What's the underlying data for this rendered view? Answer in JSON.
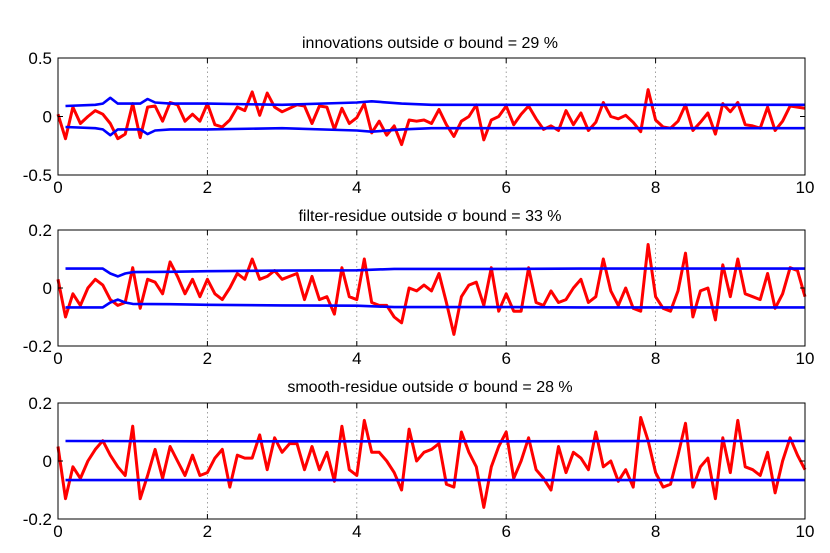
{
  "chart_data": [
    {
      "type": "line",
      "title_prefix": "innovations outside ",
      "title_symbol": "σ",
      "title_suffix": " bound = 29 %",
      "xlim": [
        0,
        10
      ],
      "ylim": [
        -0.5,
        0.5
      ],
      "xticks": [
        0,
        2,
        4,
        6,
        8,
        10
      ],
      "yticks": [
        -0.5,
        0,
        0.5
      ],
      "ytick_labels": [
        "-0.5",
        "0",
        "0.5"
      ],
      "grid": "x-dotted",
      "series": [
        {
          "color": "#ff0000",
          "role": "signal",
          "x": [
            0,
            0.1,
            0.2,
            0.3,
            0.4,
            0.5,
            0.6,
            0.7,
            0.8,
            0.9,
            1.0,
            1.1,
            1.2,
            1.3,
            1.4,
            1.5,
            1.6,
            1.7,
            1.8,
            1.9,
            2.0,
            2.1,
            2.2,
            2.3,
            2.4,
            2.5,
            2.6,
            2.7,
            2.8,
            2.9,
            3.0,
            3.1,
            3.2,
            3.3,
            3.4,
            3.5,
            3.6,
            3.7,
            3.8,
            3.9,
            4.0,
            4.1,
            4.2,
            4.3,
            4.4,
            4.5,
            4.6,
            4.7,
            4.8,
            4.9,
            5.0,
            5.1,
            5.2,
            5.3,
            5.4,
            5.5,
            5.6,
            5.7,
            5.8,
            5.9,
            6.0,
            6.1,
            6.2,
            6.3,
            6.4,
            6.5,
            6.6,
            6.7,
            6.8,
            6.9,
            7.0,
            7.1,
            7.2,
            7.3,
            7.4,
            7.5,
            7.6,
            7.7,
            7.8,
            7.9,
            8.0,
            8.1,
            8.2,
            8.3,
            8.4,
            8.5,
            8.6,
            8.7,
            8.8,
            8.9,
            9.0,
            9.1,
            9.2,
            9.3,
            9.4,
            9.5,
            9.6,
            9.7,
            9.8,
            9.9,
            10.0
          ],
          "y": [
            0.02,
            -0.19,
            0.08,
            -0.06,
            0.0,
            0.05,
            0.02,
            -0.06,
            -0.19,
            -0.15,
            0.11,
            -0.18,
            0.08,
            0.09,
            -0.04,
            0.12,
            0.1,
            -0.04,
            0.02,
            -0.04,
            0.11,
            -0.07,
            -0.09,
            -0.03,
            0.08,
            0.05,
            0.21,
            0.01,
            0.2,
            0.08,
            0.04,
            0.07,
            0.1,
            0.09,
            -0.06,
            0.09,
            0.08,
            -0.11,
            0.07,
            -0.06,
            -0.01,
            0.11,
            -0.14,
            -0.04,
            -0.16,
            -0.08,
            -0.24,
            -0.03,
            -0.04,
            -0.03,
            -0.06,
            0.06,
            -0.07,
            -0.17,
            -0.04,
            0.0,
            0.1,
            -0.2,
            -0.03,
            0.0,
            0.09,
            -0.07,
            0.02,
            0.09,
            -0.02,
            -0.11,
            -0.08,
            -0.12,
            0.05,
            -0.07,
            0.03,
            -0.12,
            -0.05,
            0.12,
            0.0,
            -0.02,
            0.01,
            -0.05,
            -0.13,
            0.23,
            -0.03,
            -0.09,
            -0.1,
            -0.04,
            0.1,
            -0.12,
            -0.05,
            0.03,
            -0.15,
            0.11,
            0.04,
            0.12,
            -0.07,
            -0.08,
            -0.1,
            0.08,
            -0.12,
            -0.04,
            0.09,
            0.08,
            0.07
          ]
        },
        {
          "color": "#0000ff",
          "role": "upper-bound",
          "x": [
            0.1,
            0.5,
            0.6,
            0.7,
            0.8,
            0.9,
            1.1,
            1.2,
            1.3,
            1.5,
            2.0,
            3.0,
            4.0,
            4.2,
            4.6,
            5.0,
            6.0,
            7.0,
            8.0,
            9.0,
            10.0
          ],
          "y": [
            0.09,
            0.1,
            0.11,
            0.16,
            0.11,
            0.11,
            0.11,
            0.15,
            0.12,
            0.11,
            0.11,
            0.1,
            0.12,
            0.13,
            0.11,
            0.1,
            0.1,
            0.1,
            0.1,
            0.1,
            0.1
          ]
        },
        {
          "color": "#0000ff",
          "role": "lower-bound",
          "x": [
            0.1,
            0.5,
            0.6,
            0.7,
            0.8,
            0.9,
            1.1,
            1.2,
            1.3,
            1.5,
            2.0,
            3.0,
            4.0,
            4.2,
            4.6,
            5.0,
            6.0,
            7.0,
            8.0,
            9.0,
            10.0
          ],
          "y": [
            -0.09,
            -0.1,
            -0.11,
            -0.16,
            -0.11,
            -0.11,
            -0.11,
            -0.15,
            -0.12,
            -0.11,
            -0.11,
            -0.1,
            -0.12,
            -0.13,
            -0.11,
            -0.1,
            -0.1,
            -0.1,
            -0.1,
            -0.1,
            -0.1
          ]
        }
      ]
    },
    {
      "type": "line",
      "title_prefix": "filter-residue outside ",
      "title_symbol": "σ",
      "title_suffix": " bound = 33 %",
      "xlim": [
        0,
        10
      ],
      "ylim": [
        -0.2,
        0.2
      ],
      "xticks": [
        0,
        2,
        4,
        6,
        8,
        10
      ],
      "yticks": [
        -0.2,
        0,
        0.2
      ],
      "ytick_labels": [
        "-0.2",
        "0",
        "0.2"
      ],
      "grid": "x-dotted",
      "series": [
        {
          "color": "#ff0000",
          "role": "signal",
          "x": [
            0,
            0.1,
            0.2,
            0.3,
            0.4,
            0.5,
            0.6,
            0.7,
            0.8,
            0.9,
            1.0,
            1.1,
            1.2,
            1.3,
            1.4,
            1.5,
            1.6,
            1.7,
            1.8,
            1.9,
            2.0,
            2.1,
            2.2,
            2.3,
            2.4,
            2.5,
            2.6,
            2.7,
            2.8,
            2.9,
            3.0,
            3.1,
            3.2,
            3.3,
            3.4,
            3.5,
            3.6,
            3.7,
            3.8,
            3.9,
            4.0,
            4.1,
            4.2,
            4.3,
            4.4,
            4.5,
            4.6,
            4.7,
            4.8,
            4.9,
            5.0,
            5.1,
            5.2,
            5.3,
            5.4,
            5.5,
            5.6,
            5.7,
            5.8,
            5.9,
            6.0,
            6.1,
            6.2,
            6.3,
            6.4,
            6.5,
            6.6,
            6.7,
            6.8,
            6.9,
            7.0,
            7.1,
            7.2,
            7.3,
            7.4,
            7.5,
            7.6,
            7.7,
            7.8,
            7.9,
            8.0,
            8.1,
            8.2,
            8.3,
            8.4,
            8.5,
            8.6,
            8.7,
            8.8,
            8.9,
            9.0,
            9.1,
            9.2,
            9.3,
            9.4,
            9.5,
            9.6,
            9.7,
            9.8,
            9.9,
            10.0
          ],
          "y": [
            0.03,
            -0.1,
            -0.02,
            -0.06,
            0.0,
            0.03,
            0.01,
            -0.04,
            -0.06,
            -0.05,
            0.07,
            -0.07,
            0.03,
            0.02,
            -0.02,
            0.09,
            0.04,
            -0.02,
            0.03,
            -0.03,
            0.03,
            -0.02,
            -0.04,
            0.0,
            0.05,
            0.03,
            0.1,
            0.03,
            0.04,
            0.06,
            0.03,
            0.04,
            0.05,
            -0.04,
            0.04,
            -0.04,
            -0.03,
            -0.09,
            0.07,
            -0.03,
            -0.04,
            0.1,
            -0.05,
            -0.06,
            -0.06,
            -0.1,
            -0.12,
            0.0,
            -0.01,
            0.01,
            -0.01,
            0.05,
            -0.05,
            -0.16,
            -0.03,
            0.01,
            0.02,
            -0.06,
            0.07,
            -0.08,
            -0.02,
            -0.08,
            -0.08,
            0.07,
            -0.05,
            -0.06,
            -0.01,
            -0.05,
            -0.04,
            0.0,
            0.03,
            -0.05,
            -0.03,
            0.1,
            -0.01,
            -0.06,
            0.0,
            -0.07,
            -0.08,
            0.15,
            -0.03,
            -0.07,
            -0.08,
            -0.01,
            0.12,
            -0.1,
            -0.01,
            0.0,
            -0.11,
            0.08,
            -0.03,
            0.1,
            -0.02,
            -0.03,
            -0.04,
            0.05,
            -0.07,
            -0.02,
            0.07,
            0.06,
            -0.03
          ]
        },
        {
          "color": "#0000ff",
          "role": "upper-bound",
          "x": [
            0.1,
            0.6,
            0.7,
            0.8,
            0.9,
            1.0,
            1.5,
            2.0,
            3.0,
            4.0,
            4.5,
            5.0,
            6.0,
            7.0,
            8.0,
            9.0,
            10.0
          ],
          "y": [
            0.067,
            0.067,
            0.05,
            0.04,
            0.05,
            0.055,
            0.056,
            0.058,
            0.06,
            0.061,
            0.066,
            0.066,
            0.066,
            0.067,
            0.067,
            0.067,
            0.067
          ]
        },
        {
          "color": "#0000ff",
          "role": "lower-bound",
          "x": [
            0.1,
            0.6,
            0.7,
            0.8,
            0.9,
            1.0,
            1.5,
            2.0,
            3.0,
            4.0,
            4.5,
            5.0,
            6.0,
            7.0,
            8.0,
            9.0,
            10.0
          ],
          "y": [
            -0.067,
            -0.067,
            -0.05,
            -0.04,
            -0.05,
            -0.055,
            -0.056,
            -0.058,
            -0.06,
            -0.061,
            -0.066,
            -0.066,
            -0.066,
            -0.067,
            -0.067,
            -0.067,
            -0.067
          ]
        }
      ]
    },
    {
      "type": "line",
      "title_prefix": "smooth-residue outside ",
      "title_symbol": "σ",
      "title_suffix": " bound = 28 %",
      "xlim": [
        0,
        10
      ],
      "ylim": [
        -0.2,
        0.2
      ],
      "xticks": [
        0,
        2,
        4,
        6,
        8,
        10
      ],
      "yticks": [
        -0.2,
        0,
        0.2
      ],
      "ytick_labels": [
        "-0.2",
        "0",
        "0.2"
      ],
      "grid": "x-dotted",
      "series": [
        {
          "color": "#ff0000",
          "role": "signal",
          "x": [
            0,
            0.1,
            0.2,
            0.3,
            0.4,
            0.5,
            0.6,
            0.7,
            0.8,
            0.9,
            1.0,
            1.1,
            1.2,
            1.3,
            1.4,
            1.5,
            1.6,
            1.7,
            1.8,
            1.9,
            2.0,
            2.1,
            2.2,
            2.3,
            2.4,
            2.5,
            2.6,
            2.7,
            2.8,
            2.9,
            3.0,
            3.1,
            3.2,
            3.3,
            3.4,
            3.5,
            3.6,
            3.7,
            3.8,
            3.9,
            4.0,
            4.1,
            4.2,
            4.3,
            4.4,
            4.5,
            4.6,
            4.7,
            4.8,
            4.9,
            5.0,
            5.1,
            5.2,
            5.3,
            5.4,
            5.5,
            5.6,
            5.7,
            5.8,
            5.9,
            6.0,
            6.1,
            6.2,
            6.3,
            6.4,
            6.5,
            6.6,
            6.7,
            6.8,
            6.9,
            7.0,
            7.1,
            7.2,
            7.3,
            7.4,
            7.5,
            7.6,
            7.7,
            7.8,
            7.9,
            8.0,
            8.1,
            8.2,
            8.3,
            8.4,
            8.5,
            8.6,
            8.7,
            8.8,
            8.9,
            9.0,
            9.1,
            9.2,
            9.3,
            9.4,
            9.5,
            9.6,
            9.7,
            9.8,
            9.9,
            10.0
          ],
          "y": [
            0.05,
            -0.13,
            -0.02,
            -0.06,
            0.0,
            0.04,
            0.07,
            0.02,
            -0.02,
            -0.05,
            0.12,
            -0.13,
            -0.05,
            0.04,
            -0.06,
            0.05,
            0.0,
            -0.05,
            0.02,
            -0.05,
            -0.04,
            0.01,
            0.04,
            -0.09,
            0.02,
            0.01,
            0.01,
            0.09,
            -0.03,
            0.08,
            0.03,
            0.06,
            0.06,
            -0.03,
            0.05,
            -0.03,
            0.03,
            -0.07,
            0.12,
            -0.03,
            -0.05,
            0.14,
            0.03,
            0.03,
            0.0,
            -0.04,
            -0.1,
            0.11,
            0.0,
            0.03,
            0.04,
            0.06,
            -0.08,
            -0.09,
            0.1,
            0.03,
            -0.02,
            -0.16,
            -0.02,
            0.05,
            0.1,
            -0.06,
            0.0,
            0.08,
            -0.03,
            -0.06,
            -0.1,
            0.05,
            -0.04,
            0.03,
            0.01,
            -0.03,
            0.1,
            -0.02,
            0.0,
            -0.07,
            -0.03,
            -0.09,
            0.15,
            0.07,
            -0.04,
            -0.09,
            -0.08,
            0.02,
            0.13,
            -0.09,
            -0.02,
            0.01,
            -0.13,
            0.08,
            -0.04,
            0.14,
            -0.02,
            -0.03,
            -0.05,
            0.03,
            -0.11,
            0.0,
            0.08,
            0.02,
            -0.03
          ]
        },
        {
          "color": "#0000ff",
          "role": "upper-bound",
          "x": [
            0.1,
            2.0,
            4.0,
            6.0,
            8.0,
            10.0
          ],
          "y": [
            0.069,
            0.068,
            0.068,
            0.068,
            0.069,
            0.069
          ]
        },
        {
          "color": "#0000ff",
          "role": "lower-bound",
          "x": [
            0.1,
            2.0,
            4.0,
            6.0,
            8.0,
            10.0
          ],
          "y": [
            -0.066,
            -0.066,
            -0.066,
            -0.066,
            -0.066,
            -0.066
          ]
        }
      ]
    }
  ]
}
